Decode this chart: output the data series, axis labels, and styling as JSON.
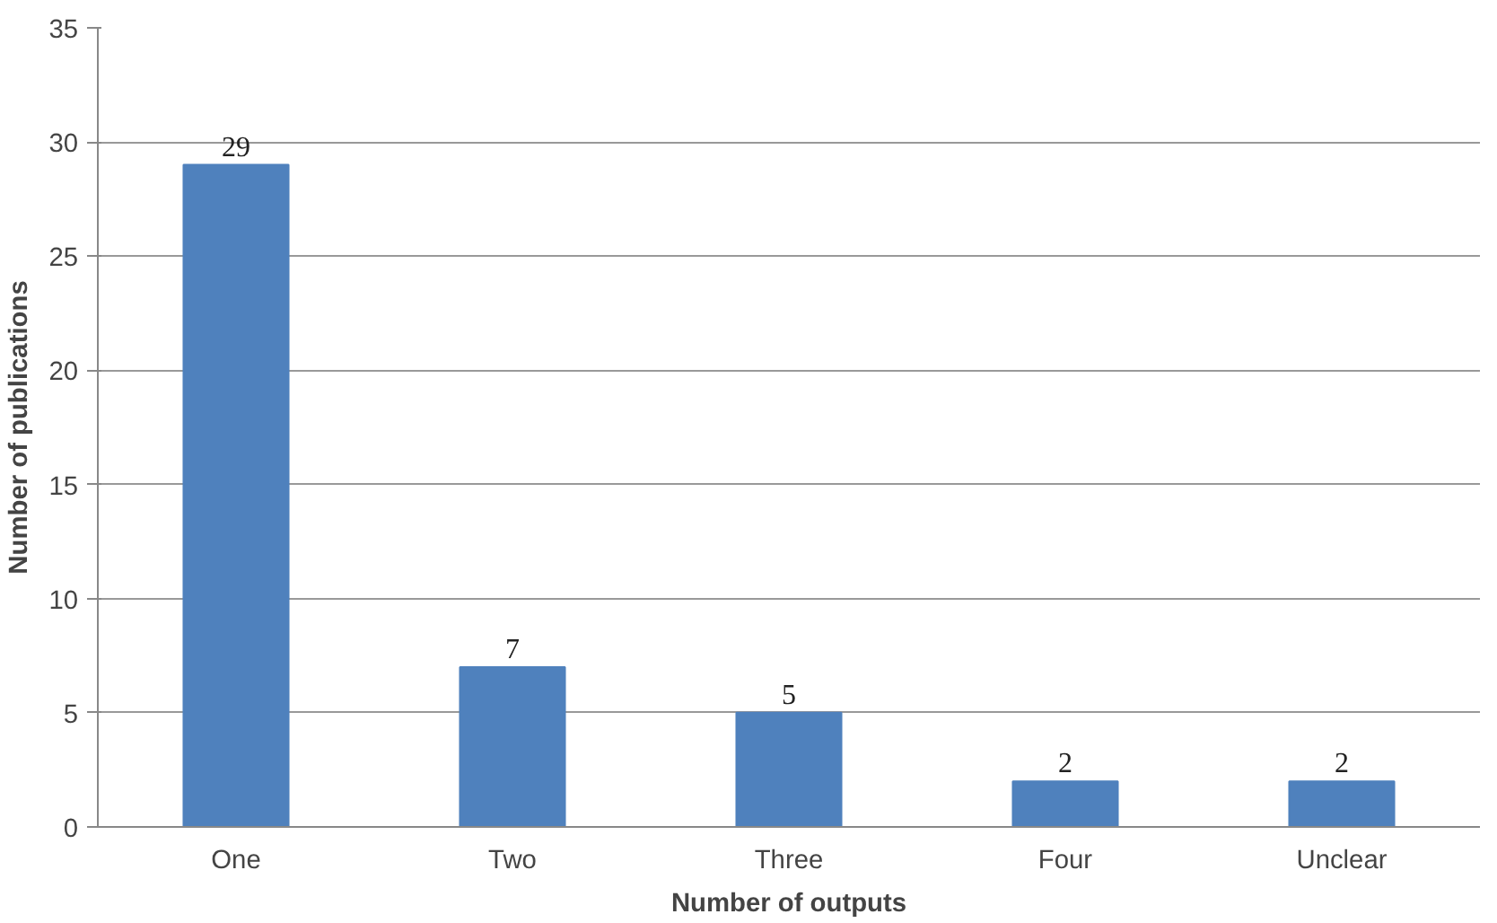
{
  "chart_data": {
    "type": "bar",
    "xlabel": "Number of outputs",
    "ylabel": "Number of publications",
    "categories": [
      "One",
      "Two",
      "Three",
      "Four",
      "Unclear"
    ],
    "values": [
      29,
      7,
      5,
      2,
      2
    ],
    "color": "#4f81bd",
    "ylim": [
      0,
      35
    ],
    "yticks": [
      0,
      5,
      10,
      15,
      20,
      25,
      30,
      35
    ],
    "grid": "y",
    "data_labels": true
  }
}
